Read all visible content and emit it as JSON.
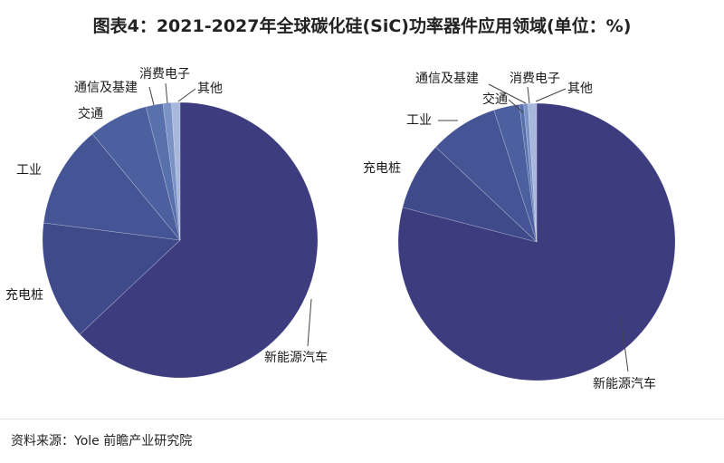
{
  "title": "图表4：2021-2027年全球碳化硅(SiC)功率器件应用领域(单位：%)",
  "source": "资料来源：Yole 前瞻产业研究院",
  "colors": {
    "新能源汽车": "#3c3c7e",
    "充电桩": "#3f4a8a",
    "工业": "#445494",
    "交通": "#4c5f9f",
    "通信及基建": "#5870ab",
    "消费电子": "#7a92c5",
    "其他": "#a8b8dc",
    "leader": "#444444"
  },
  "chart_data": [
    {
      "type": "pie",
      "title": "",
      "slices": [
        {
          "label": "新能源汽车",
          "value": 63
        },
        {
          "label": "充电桩",
          "value": 14
        },
        {
          "label": "工业",
          "value": 12
        },
        {
          "label": "交通",
          "value": 7
        },
        {
          "label": "通信及基建",
          "value": 2
        },
        {
          "label": "消费电子",
          "value": 1
        },
        {
          "label": "其他",
          "value": 1
        }
      ]
    },
    {
      "type": "pie",
      "title": "",
      "slices": [
        {
          "label": "新能源汽车",
          "value": 79
        },
        {
          "label": "充电桩",
          "value": 8
        },
        {
          "label": "工业",
          "value": 8
        },
        {
          "label": "交通",
          "value": 3
        },
        {
          "label": "通信及基建",
          "value": 0.5
        },
        {
          "label": "消费电子",
          "value": 0.5
        },
        {
          "label": "其他",
          "value": 1
        }
      ]
    }
  ]
}
